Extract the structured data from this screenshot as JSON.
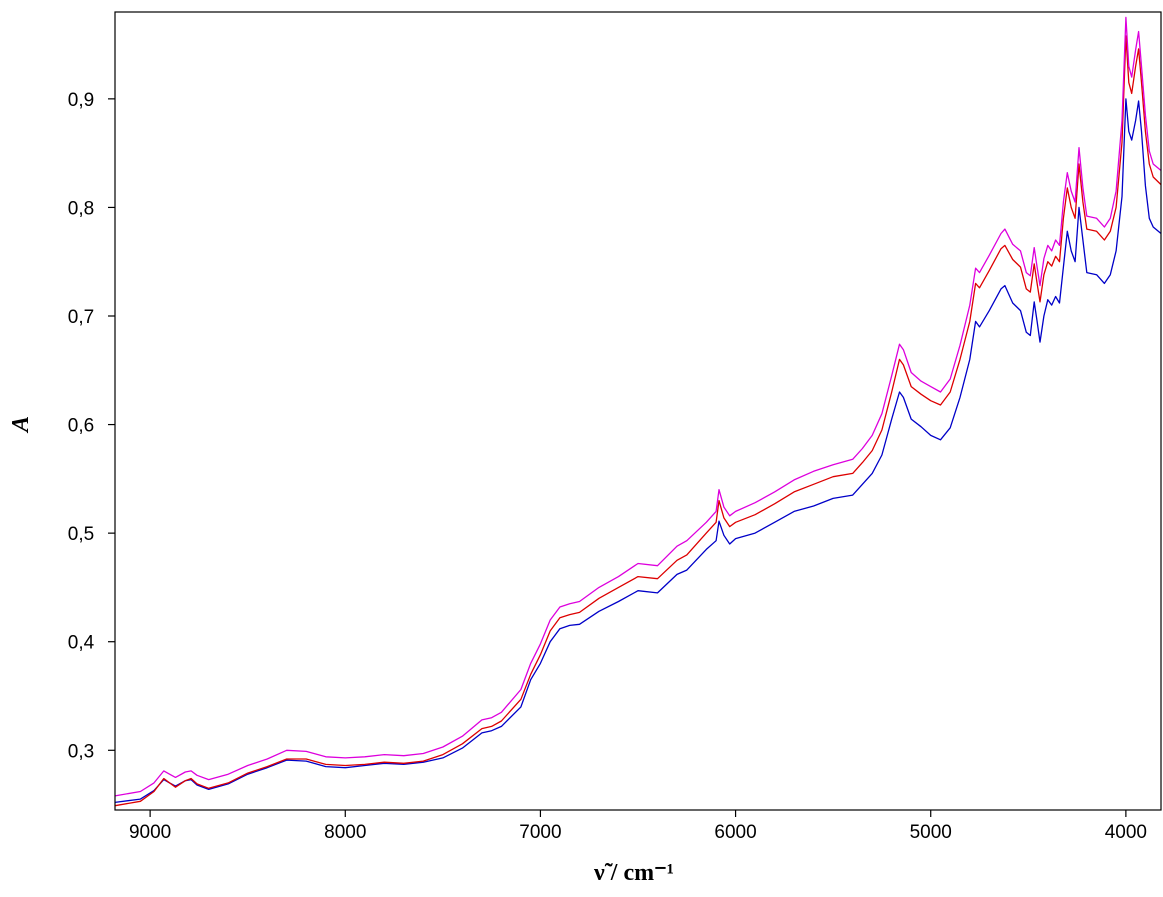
{
  "chart_data": {
    "type": "line",
    "title": "",
    "xlabel": "ν̃ / cm⁻¹",
    "ylabel": "A",
    "xlim": [
      9180,
      3820
    ],
    "ylim": [
      0.245,
      0.98
    ],
    "x_reversed": true,
    "grid": false,
    "legend": "none",
    "x_ticks": [
      9000,
      8000,
      7000,
      6000,
      5000,
      4000
    ],
    "x_tick_labels": [
      "9000",
      "8000",
      "7000",
      "6000",
      "5000",
      "4000"
    ],
    "y_ticks": [
      0.3,
      0.4,
      0.5,
      0.6,
      0.7,
      0.8,
      0.9
    ],
    "y_tick_labels": [
      "0,3",
      "0,4",
      "0,5",
      "0,6",
      "0,7",
      "0,8",
      "0,9"
    ],
    "series": [
      {
        "color": "#0000c8",
        "points": [
          [
            9180,
            0.252
          ],
          [
            9050,
            0.255
          ],
          [
            8980,
            0.263
          ],
          [
            8930,
            0.273
          ],
          [
            8900,
            0.27
          ],
          [
            8870,
            0.267
          ],
          [
            8820,
            0.272
          ],
          [
            8790,
            0.273
          ],
          [
            8760,
            0.268
          ],
          [
            8700,
            0.264
          ],
          [
            8600,
            0.269
          ],
          [
            8500,
            0.278
          ],
          [
            8400,
            0.284
          ],
          [
            8300,
            0.291
          ],
          [
            8200,
            0.29
          ],
          [
            8100,
            0.285
          ],
          [
            8000,
            0.284
          ],
          [
            7900,
            0.286
          ],
          [
            7800,
            0.288
          ],
          [
            7700,
            0.287
          ],
          [
            7600,
            0.289
          ],
          [
            7500,
            0.293
          ],
          [
            7400,
            0.302
          ],
          [
            7300,
            0.316
          ],
          [
            7250,
            0.318
          ],
          [
            7200,
            0.322
          ],
          [
            7100,
            0.34
          ],
          [
            7050,
            0.365
          ],
          [
            7000,
            0.38
          ],
          [
            6950,
            0.4
          ],
          [
            6900,
            0.412
          ],
          [
            6850,
            0.415
          ],
          [
            6800,
            0.416
          ],
          [
            6700,
            0.428
          ],
          [
            6600,
            0.437
          ],
          [
            6500,
            0.447
          ],
          [
            6400,
            0.445
          ],
          [
            6300,
            0.462
          ],
          [
            6250,
            0.466
          ],
          [
            6150,
            0.485
          ],
          [
            6100,
            0.493
          ],
          [
            6085,
            0.511
          ],
          [
            6060,
            0.498
          ],
          [
            6030,
            0.49
          ],
          [
            6000,
            0.495
          ],
          [
            5900,
            0.5
          ],
          [
            5800,
            0.51
          ],
          [
            5700,
            0.52
          ],
          [
            5600,
            0.525
          ],
          [
            5500,
            0.532
          ],
          [
            5400,
            0.535
          ],
          [
            5350,
            0.545
          ],
          [
            5300,
            0.555
          ],
          [
            5250,
            0.572
          ],
          [
            5200,
            0.605
          ],
          [
            5160,
            0.63
          ],
          [
            5140,
            0.625
          ],
          [
            5100,
            0.605
          ],
          [
            5050,
            0.598
          ],
          [
            5000,
            0.59
          ],
          [
            4950,
            0.586
          ],
          [
            4900,
            0.597
          ],
          [
            4850,
            0.625
          ],
          [
            4800,
            0.66
          ],
          [
            4770,
            0.695
          ],
          [
            4750,
            0.69
          ],
          [
            4700,
            0.705
          ],
          [
            4640,
            0.725
          ],
          [
            4620,
            0.728
          ],
          [
            4580,
            0.712
          ],
          [
            4540,
            0.705
          ],
          [
            4510,
            0.685
          ],
          [
            4490,
            0.682
          ],
          [
            4470,
            0.713
          ],
          [
            4455,
            0.695
          ],
          [
            4440,
            0.676
          ],
          [
            4420,
            0.7
          ],
          [
            4400,
            0.715
          ],
          [
            4380,
            0.71
          ],
          [
            4360,
            0.718
          ],
          [
            4340,
            0.712
          ],
          [
            4320,
            0.745
          ],
          [
            4300,
            0.778
          ],
          [
            4280,
            0.76
          ],
          [
            4260,
            0.75
          ],
          [
            4240,
            0.8
          ],
          [
            4220,
            0.77
          ],
          [
            4200,
            0.74
          ],
          [
            4150,
            0.738
          ],
          [
            4110,
            0.73
          ],
          [
            4080,
            0.738
          ],
          [
            4050,
            0.76
          ],
          [
            4020,
            0.81
          ],
          [
            4000,
            0.9
          ],
          [
            3985,
            0.87
          ],
          [
            3970,
            0.862
          ],
          [
            3950,
            0.88
          ],
          [
            3935,
            0.898
          ],
          [
            3920,
            0.87
          ],
          [
            3900,
            0.82
          ],
          [
            3880,
            0.79
          ],
          [
            3860,
            0.782
          ],
          [
            3820,
            0.776
          ]
        ]
      },
      {
        "color": "#dd0000",
        "points": [
          [
            9180,
            0.249
          ],
          [
            9050,
            0.253
          ],
          [
            8980,
            0.262
          ],
          [
            8930,
            0.274
          ],
          [
            8900,
            0.27
          ],
          [
            8870,
            0.266
          ],
          [
            8820,
            0.272
          ],
          [
            8790,
            0.274
          ],
          [
            8760,
            0.269
          ],
          [
            8700,
            0.265
          ],
          [
            8600,
            0.27
          ],
          [
            8500,
            0.279
          ],
          [
            8400,
            0.285
          ],
          [
            8300,
            0.292
          ],
          [
            8200,
            0.292
          ],
          [
            8100,
            0.287
          ],
          [
            8000,
            0.286
          ],
          [
            7900,
            0.287
          ],
          [
            7800,
            0.289
          ],
          [
            7700,
            0.288
          ],
          [
            7600,
            0.29
          ],
          [
            7500,
            0.296
          ],
          [
            7400,
            0.306
          ],
          [
            7300,
            0.32
          ],
          [
            7250,
            0.322
          ],
          [
            7200,
            0.327
          ],
          [
            7100,
            0.347
          ],
          [
            7050,
            0.37
          ],
          [
            7000,
            0.388
          ],
          [
            6950,
            0.41
          ],
          [
            6900,
            0.422
          ],
          [
            6850,
            0.425
          ],
          [
            6800,
            0.427
          ],
          [
            6700,
            0.44
          ],
          [
            6600,
            0.45
          ],
          [
            6500,
            0.46
          ],
          [
            6400,
            0.458
          ],
          [
            6300,
            0.475
          ],
          [
            6250,
            0.48
          ],
          [
            6150,
            0.5
          ],
          [
            6100,
            0.51
          ],
          [
            6085,
            0.53
          ],
          [
            6060,
            0.514
          ],
          [
            6030,
            0.506
          ],
          [
            6000,
            0.51
          ],
          [
            5900,
            0.517
          ],
          [
            5800,
            0.527
          ],
          [
            5700,
            0.538
          ],
          [
            5600,
            0.545
          ],
          [
            5500,
            0.552
          ],
          [
            5400,
            0.555
          ],
          [
            5350,
            0.565
          ],
          [
            5300,
            0.576
          ],
          [
            5250,
            0.595
          ],
          [
            5200,
            0.63
          ],
          [
            5160,
            0.66
          ],
          [
            5140,
            0.655
          ],
          [
            5100,
            0.635
          ],
          [
            5050,
            0.628
          ],
          [
            5000,
            0.622
          ],
          [
            4950,
            0.618
          ],
          [
            4900,
            0.63
          ],
          [
            4850,
            0.66
          ],
          [
            4800,
            0.695
          ],
          [
            4770,
            0.73
          ],
          [
            4750,
            0.726
          ],
          [
            4700,
            0.742
          ],
          [
            4640,
            0.762
          ],
          [
            4620,
            0.765
          ],
          [
            4580,
            0.752
          ],
          [
            4540,
            0.745
          ],
          [
            4510,
            0.725
          ],
          [
            4490,
            0.722
          ],
          [
            4470,
            0.748
          ],
          [
            4455,
            0.73
          ],
          [
            4440,
            0.713
          ],
          [
            4420,
            0.738
          ],
          [
            4400,
            0.75
          ],
          [
            4380,
            0.746
          ],
          [
            4360,
            0.755
          ],
          [
            4340,
            0.75
          ],
          [
            4320,
            0.79
          ],
          [
            4300,
            0.818
          ],
          [
            4280,
            0.8
          ],
          [
            4260,
            0.79
          ],
          [
            4240,
            0.84
          ],
          [
            4220,
            0.805
          ],
          [
            4200,
            0.78
          ],
          [
            4150,
            0.778
          ],
          [
            4110,
            0.77
          ],
          [
            4080,
            0.778
          ],
          [
            4050,
            0.8
          ],
          [
            4020,
            0.86
          ],
          [
            4000,
            0.958
          ],
          [
            3985,
            0.915
          ],
          [
            3970,
            0.905
          ],
          [
            3950,
            0.93
          ],
          [
            3935,
            0.946
          ],
          [
            3920,
            0.915
          ],
          [
            3900,
            0.87
          ],
          [
            3880,
            0.84
          ],
          [
            3860,
            0.828
          ],
          [
            3820,
            0.821
          ]
        ]
      },
      {
        "color": "#dd00dd",
        "points": [
          [
            9180,
            0.258
          ],
          [
            9050,
            0.262
          ],
          [
            8980,
            0.27
          ],
          [
            8930,
            0.281
          ],
          [
            8900,
            0.278
          ],
          [
            8870,
            0.275
          ],
          [
            8820,
            0.28
          ],
          [
            8790,
            0.281
          ],
          [
            8760,
            0.277
          ],
          [
            8700,
            0.273
          ],
          [
            8600,
            0.278
          ],
          [
            8500,
            0.286
          ],
          [
            8400,
            0.292
          ],
          [
            8300,
            0.3
          ],
          [
            8200,
            0.299
          ],
          [
            8100,
            0.294
          ],
          [
            8000,
            0.293
          ],
          [
            7900,
            0.294
          ],
          [
            7800,
            0.296
          ],
          [
            7700,
            0.295
          ],
          [
            7600,
            0.297
          ],
          [
            7500,
            0.303
          ],
          [
            7400,
            0.313
          ],
          [
            7300,
            0.328
          ],
          [
            7250,
            0.33
          ],
          [
            7200,
            0.335
          ],
          [
            7100,
            0.356
          ],
          [
            7050,
            0.38
          ],
          [
            7000,
            0.398
          ],
          [
            6950,
            0.42
          ],
          [
            6900,
            0.432
          ],
          [
            6850,
            0.435
          ],
          [
            6800,
            0.437
          ],
          [
            6700,
            0.45
          ],
          [
            6600,
            0.46
          ],
          [
            6500,
            0.472
          ],
          [
            6400,
            0.47
          ],
          [
            6300,
            0.488
          ],
          [
            6250,
            0.493
          ],
          [
            6150,
            0.51
          ],
          [
            6100,
            0.52
          ],
          [
            6085,
            0.54
          ],
          [
            6060,
            0.524
          ],
          [
            6030,
            0.516
          ],
          [
            6000,
            0.52
          ],
          [
            5900,
            0.528
          ],
          [
            5800,
            0.538
          ],
          [
            5700,
            0.549
          ],
          [
            5600,
            0.557
          ],
          [
            5500,
            0.563
          ],
          [
            5400,
            0.568
          ],
          [
            5350,
            0.578
          ],
          [
            5300,
            0.59
          ],
          [
            5250,
            0.61
          ],
          [
            5200,
            0.645
          ],
          [
            5160,
            0.674
          ],
          [
            5140,
            0.669
          ],
          [
            5100,
            0.648
          ],
          [
            5050,
            0.64
          ],
          [
            5000,
            0.635
          ],
          [
            4950,
            0.63
          ],
          [
            4900,
            0.642
          ],
          [
            4850,
            0.673
          ],
          [
            4800,
            0.71
          ],
          [
            4770,
            0.744
          ],
          [
            4750,
            0.74
          ],
          [
            4700,
            0.756
          ],
          [
            4640,
            0.776
          ],
          [
            4620,
            0.78
          ],
          [
            4580,
            0.766
          ],
          [
            4540,
            0.76
          ],
          [
            4510,
            0.74
          ],
          [
            4490,
            0.737
          ],
          [
            4470,
            0.763
          ],
          [
            4455,
            0.745
          ],
          [
            4440,
            0.728
          ],
          [
            4420,
            0.753
          ],
          [
            4400,
            0.765
          ],
          [
            4380,
            0.76
          ],
          [
            4360,
            0.77
          ],
          [
            4340,
            0.765
          ],
          [
            4320,
            0.805
          ],
          [
            4300,
            0.832
          ],
          [
            4280,
            0.815
          ],
          [
            4260,
            0.805
          ],
          [
            4240,
            0.855
          ],
          [
            4220,
            0.818
          ],
          [
            4200,
            0.792
          ],
          [
            4150,
            0.79
          ],
          [
            4110,
            0.782
          ],
          [
            4080,
            0.79
          ],
          [
            4050,
            0.815
          ],
          [
            4020,
            0.88
          ],
          [
            4000,
            0.975
          ],
          [
            3985,
            0.93
          ],
          [
            3970,
            0.92
          ],
          [
            3950,
            0.945
          ],
          [
            3935,
            0.962
          ],
          [
            3920,
            0.93
          ],
          [
            3900,
            0.885
          ],
          [
            3880,
            0.852
          ],
          [
            3860,
            0.84
          ],
          [
            3820,
            0.834
          ]
        ]
      }
    ]
  }
}
